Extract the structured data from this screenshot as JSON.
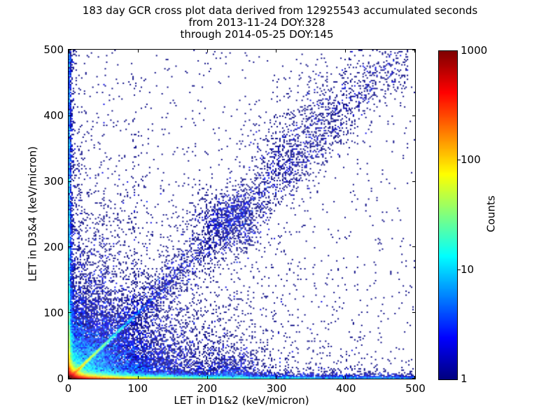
{
  "chart_data": {
    "type": "heatmap",
    "title_lines": [
      "183 day GCR cross plot data derived from 12925543 accumulated seconds",
      "from 2013-11-24 DOY:328",
      "through 2014-05-25 DOY:145"
    ],
    "xlabel": "LET in D1&2 (keV/micron)",
    "ylabel": "LET in D3&4 (keV/micron)",
    "xlim": [
      0,
      500
    ],
    "ylim": [
      0,
      500
    ],
    "x_ticks": [
      0,
      100,
      200,
      300,
      400,
      500
    ],
    "x_tick_labels": [
      "0",
      "100",
      "200",
      "300",
      "400",
      "500"
    ],
    "y_ticks": [
      0,
      100,
      200,
      300,
      400,
      500
    ],
    "y_tick_labels": [
      "0",
      "100",
      "200",
      "300",
      "400",
      "500"
    ],
    "grid": false,
    "background": "#ffffff",
    "single_count_color": "#000080",
    "colorbar": {
      "label": "Counts",
      "colormap": "jet",
      "scale": "log",
      "min": 1,
      "max": 1000,
      "tick_values": [
        1000,
        100,
        10,
        1
      ],
      "tick_labels": [
        "1000",
        "100",
        "10",
        "1"
      ]
    },
    "features": [
      "very high count hotspot (~1000 counts, dark red) at origin within x<15, y<12",
      "high-count band hugging the x-axis (y<5): red to x~60, yellow-green to x~130, blue speckle continuing to x=500",
      "count band hugging the y-axis (x<4) running the full height, blue with cyan speckle",
      "bright y=x diagonal ridge from origin: orange near 0, green-cyan to ~(50,50), blue to ~(120,120)",
      "diffuse low-count diagonal band continuing upward with dense dark-blue cluster near (233,240) and fainter clusters near (310,345), (355,405)",
      "faint vertical streaks near x=16, x=50, x=95",
      "small cluster near bottom around (235, 12)",
      "sparse single-count (navy) points scattered over the whole plane, density decreasing away from origin and diagonal"
    ],
    "density_model": {
      "seed": 1234,
      "bin_size_units": 2,
      "units_range": 500,
      "components": [
        {
          "name": "origin-hotspot",
          "n": 20000,
          "x": {
            "dist": "exp",
            "scale": 7
          },
          "y": {
            "dist": "exp",
            "scale": 5.5
          }
        },
        {
          "name": "bottom-axis-band",
          "n": 26000,
          "x": {
            "dist": "mix",
            "parts": [
              {
                "w": 0.6,
                "dist": "exp",
                "scale": 35
              },
              {
                "w": 0.32,
                "dist": "exp",
                "scale": 110
              },
              {
                "w": 0.08,
                "dist": "uniform",
                "min": 0,
                "max": 500
              }
            ]
          },
          "y": {
            "dist": "exp",
            "scale": 2.2
          }
        },
        {
          "name": "left-axis-band",
          "n": 7000,
          "x": {
            "dist": "exp",
            "scale": 1.8
          },
          "y": {
            "dist": "mix",
            "parts": [
              {
                "w": 0.5,
                "dist": "exp",
                "scale": 28
              },
              {
                "w": 0.3,
                "dist": "exp",
                "scale": 150
              },
              {
                "w": 0.2,
                "dist": "uniform",
                "min": 0,
                "max": 500
              }
            ]
          }
        },
        {
          "name": "lower-left-cloud",
          "n": 12000,
          "x": {
            "dist": "exp",
            "scale": 55
          },
          "y": {
            "dist": "exp",
            "scale": 40
          }
        },
        {
          "name": "bright-diagonal",
          "n": 5200,
          "x": {
            "dist": "exp",
            "scale": 28
          },
          "y": {
            "dist": "line",
            "slope": 1.0,
            "sigma": 1.3
          }
        },
        {
          "name": "diffuse-diagonal-band",
          "n": 3000,
          "x": {
            "dist": "pow",
            "max": 490,
            "pow": 1.35
          },
          "y": {
            "dist": "line",
            "slope": 1.02,
            "sigma": 16,
            "sigma_slope": 0.03
          }
        },
        {
          "name": "diagonal-cluster-1",
          "n": 850,
          "x": {
            "dist": "norm",
            "mu": 233,
            "sigma": 26
          },
          "y": {
            "dist": "norm",
            "mu": 240,
            "sigma": 24
          }
        },
        {
          "name": "diagonal-cluster-2",
          "n": 300,
          "x": {
            "dist": "norm",
            "mu": 310,
            "sigma": 28
          },
          "y": {
            "dist": "norm",
            "mu": 345,
            "sigma": 32
          }
        },
        {
          "name": "diagonal-cluster-3",
          "n": 200,
          "x": {
            "dist": "norm",
            "mu": 355,
            "sigma": 25
          },
          "y": {
            "dist": "norm",
            "mu": 405,
            "sigma": 30
          }
        },
        {
          "name": "diagonal-cluster-4",
          "n": 90,
          "x": {
            "dist": "norm",
            "mu": 400,
            "sigma": 30
          },
          "y": {
            "dist": "norm",
            "mu": 460,
            "sigma": 25
          }
        },
        {
          "name": "wide-diffuse",
          "n": 2600,
          "x": {
            "dist": "exp",
            "scale": 130
          },
          "y": {
            "dist": "exp",
            "scale": 130
          }
        },
        {
          "name": "uniform-sprinkle",
          "n": 750,
          "x": {
            "dist": "uniform",
            "min": 0,
            "max": 500
          },
          "y": {
            "dist": "uniform",
            "min": 0,
            "max": 500
          }
        },
        {
          "name": "vertical-streak-16",
          "n": 130,
          "x": {
            "dist": "norm",
            "mu": 16,
            "sigma": 1.3
          },
          "y": {
            "dist": "exp",
            "scale": 160
          }
        },
        {
          "name": "vertical-streak-50",
          "n": 110,
          "x": {
            "dist": "norm",
            "mu": 50,
            "sigma": 1.3
          },
          "y": {
            "dist": "exp",
            "scale": 160
          }
        },
        {
          "name": "vertical-streak-95",
          "n": 85,
          "x": {
            "dist": "norm",
            "mu": 95,
            "sigma": 1.3
          },
          "y": {
            "dist": "exp",
            "scale": 160
          }
        },
        {
          "name": "bottom-cluster-235",
          "n": 500,
          "x": {
            "dist": "norm",
            "mu": 235,
            "sigma": 16
          },
          "y": {
            "dist": "exp",
            "scale": 12
          }
        },
        {
          "name": "low-horizontal-haze",
          "n": 1200,
          "x": {
            "dist": "exp",
            "scale": 150
          },
          "y": {
            "dist": "exp",
            "scale": 18
          }
        }
      ]
    }
  }
}
